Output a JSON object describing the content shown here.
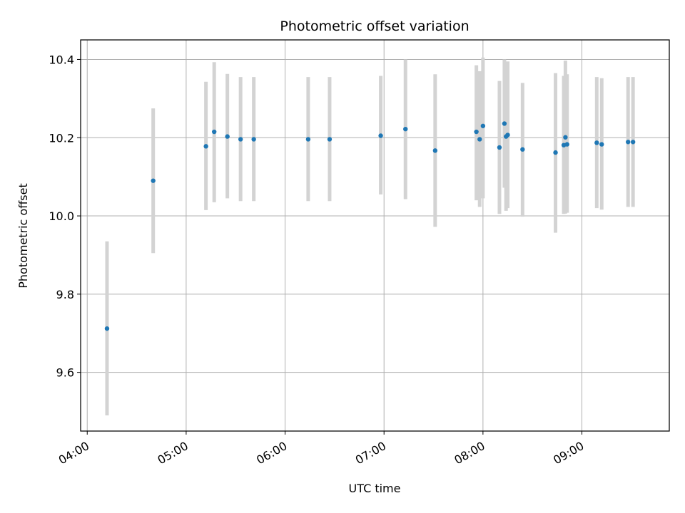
{
  "chart_data": {
    "type": "scatter",
    "title": "Photometric offset variation",
    "xlabel": "UTC time",
    "ylabel": "Photometric offset",
    "x_ticks": [
      {
        "label": "04:00",
        "value": 240
      },
      {
        "label": "05:00",
        "value": 300
      },
      {
        "label": "06:00",
        "value": 360
      },
      {
        "label": "07:00",
        "value": 420
      },
      {
        "label": "08:00",
        "value": 480
      },
      {
        "label": "09:00",
        "value": 540
      }
    ],
    "y_ticks": [
      {
        "label": "9.6",
        "value": 9.6
      },
      {
        "label": "9.8",
        "value": 9.8
      },
      {
        "label": "10.0",
        "value": 10.0
      },
      {
        "label": "10.2",
        "value": 10.2
      },
      {
        "label": "10.4",
        "value": 10.4
      }
    ],
    "xlim": [
      "03:56",
      "09:53"
    ],
    "ylim": [
      9.45,
      10.45
    ],
    "grid": true,
    "colors": {
      "point": "#1f77b4",
      "errorbar": "#d3d3d3",
      "grid": "#b0b0b0"
    },
    "points": [
      {
        "t": "04:12",
        "y": 9.712,
        "lo": 9.49,
        "hi": 9.935
      },
      {
        "t": "04:40",
        "y": 10.09,
        "lo": 9.905,
        "hi": 10.275
      },
      {
        "t": "05:12",
        "y": 10.178,
        "lo": 10.015,
        "hi": 10.343
      },
      {
        "t": "05:17",
        "y": 10.215,
        "lo": 10.035,
        "hi": 10.393
      },
      {
        "t": "05:25",
        "y": 10.203,
        "lo": 10.045,
        "hi": 10.363
      },
      {
        "t": "05:33",
        "y": 10.196,
        "lo": 10.038,
        "hi": 10.355
      },
      {
        "t": "05:41",
        "y": 10.196,
        "lo": 10.038,
        "hi": 10.355
      },
      {
        "t": "06:14",
        "y": 10.196,
        "lo": 10.038,
        "hi": 10.355
      },
      {
        "t": "06:27",
        "y": 10.196,
        "lo": 10.038,
        "hi": 10.355
      },
      {
        "t": "06:58",
        "y": 10.205,
        "lo": 10.055,
        "hi": 10.358
      },
      {
        "t": "07:13",
        "y": 10.222,
        "lo": 10.043,
        "hi": 10.4
      },
      {
        "t": "07:31",
        "y": 10.167,
        "lo": 9.972,
        "hi": 10.362
      },
      {
        "t": "07:56",
        "y": 10.215,
        "lo": 10.04,
        "hi": 10.385
      },
      {
        "t": "07:58",
        "y": 10.196,
        "lo": 10.023,
        "hi": 10.37
      },
      {
        "t": "08:00",
        "y": 10.23,
        "lo": 10.045,
        "hi": 10.405
      },
      {
        "t": "08:10",
        "y": 10.175,
        "lo": 10.005,
        "hi": 10.345
      },
      {
        "t": "08:13",
        "y": 10.236,
        "lo": 10.072,
        "hi": 10.4
      },
      {
        "t": "08:14",
        "y": 10.203,
        "lo": 10.013,
        "hi": 10.362
      },
      {
        "t": "08:15",
        "y": 10.207,
        "lo": 10.02,
        "hi": 10.395
      },
      {
        "t": "08:24",
        "y": 10.17,
        "lo": 9.998,
        "hi": 10.34
      },
      {
        "t": "08:44",
        "y": 10.162,
        "lo": 9.957,
        "hi": 10.365
      },
      {
        "t": "08:49",
        "y": 10.181,
        "lo": 10.005,
        "hi": 10.358
      },
      {
        "t": "08:50",
        "y": 10.201,
        "lo": 10.006,
        "hi": 10.397
      },
      {
        "t": "08:51",
        "y": 10.183,
        "lo": 10.008,
        "hi": 10.362
      },
      {
        "t": "09:09",
        "y": 10.187,
        "lo": 10.02,
        "hi": 10.355
      },
      {
        "t": "09:12",
        "y": 10.183,
        "lo": 10.016,
        "hi": 10.352
      },
      {
        "t": "09:28",
        "y": 10.189,
        "lo": 10.023,
        "hi": 10.355
      },
      {
        "t": "09:31",
        "y": 10.189,
        "lo": 10.023,
        "hi": 10.355
      }
    ]
  }
}
